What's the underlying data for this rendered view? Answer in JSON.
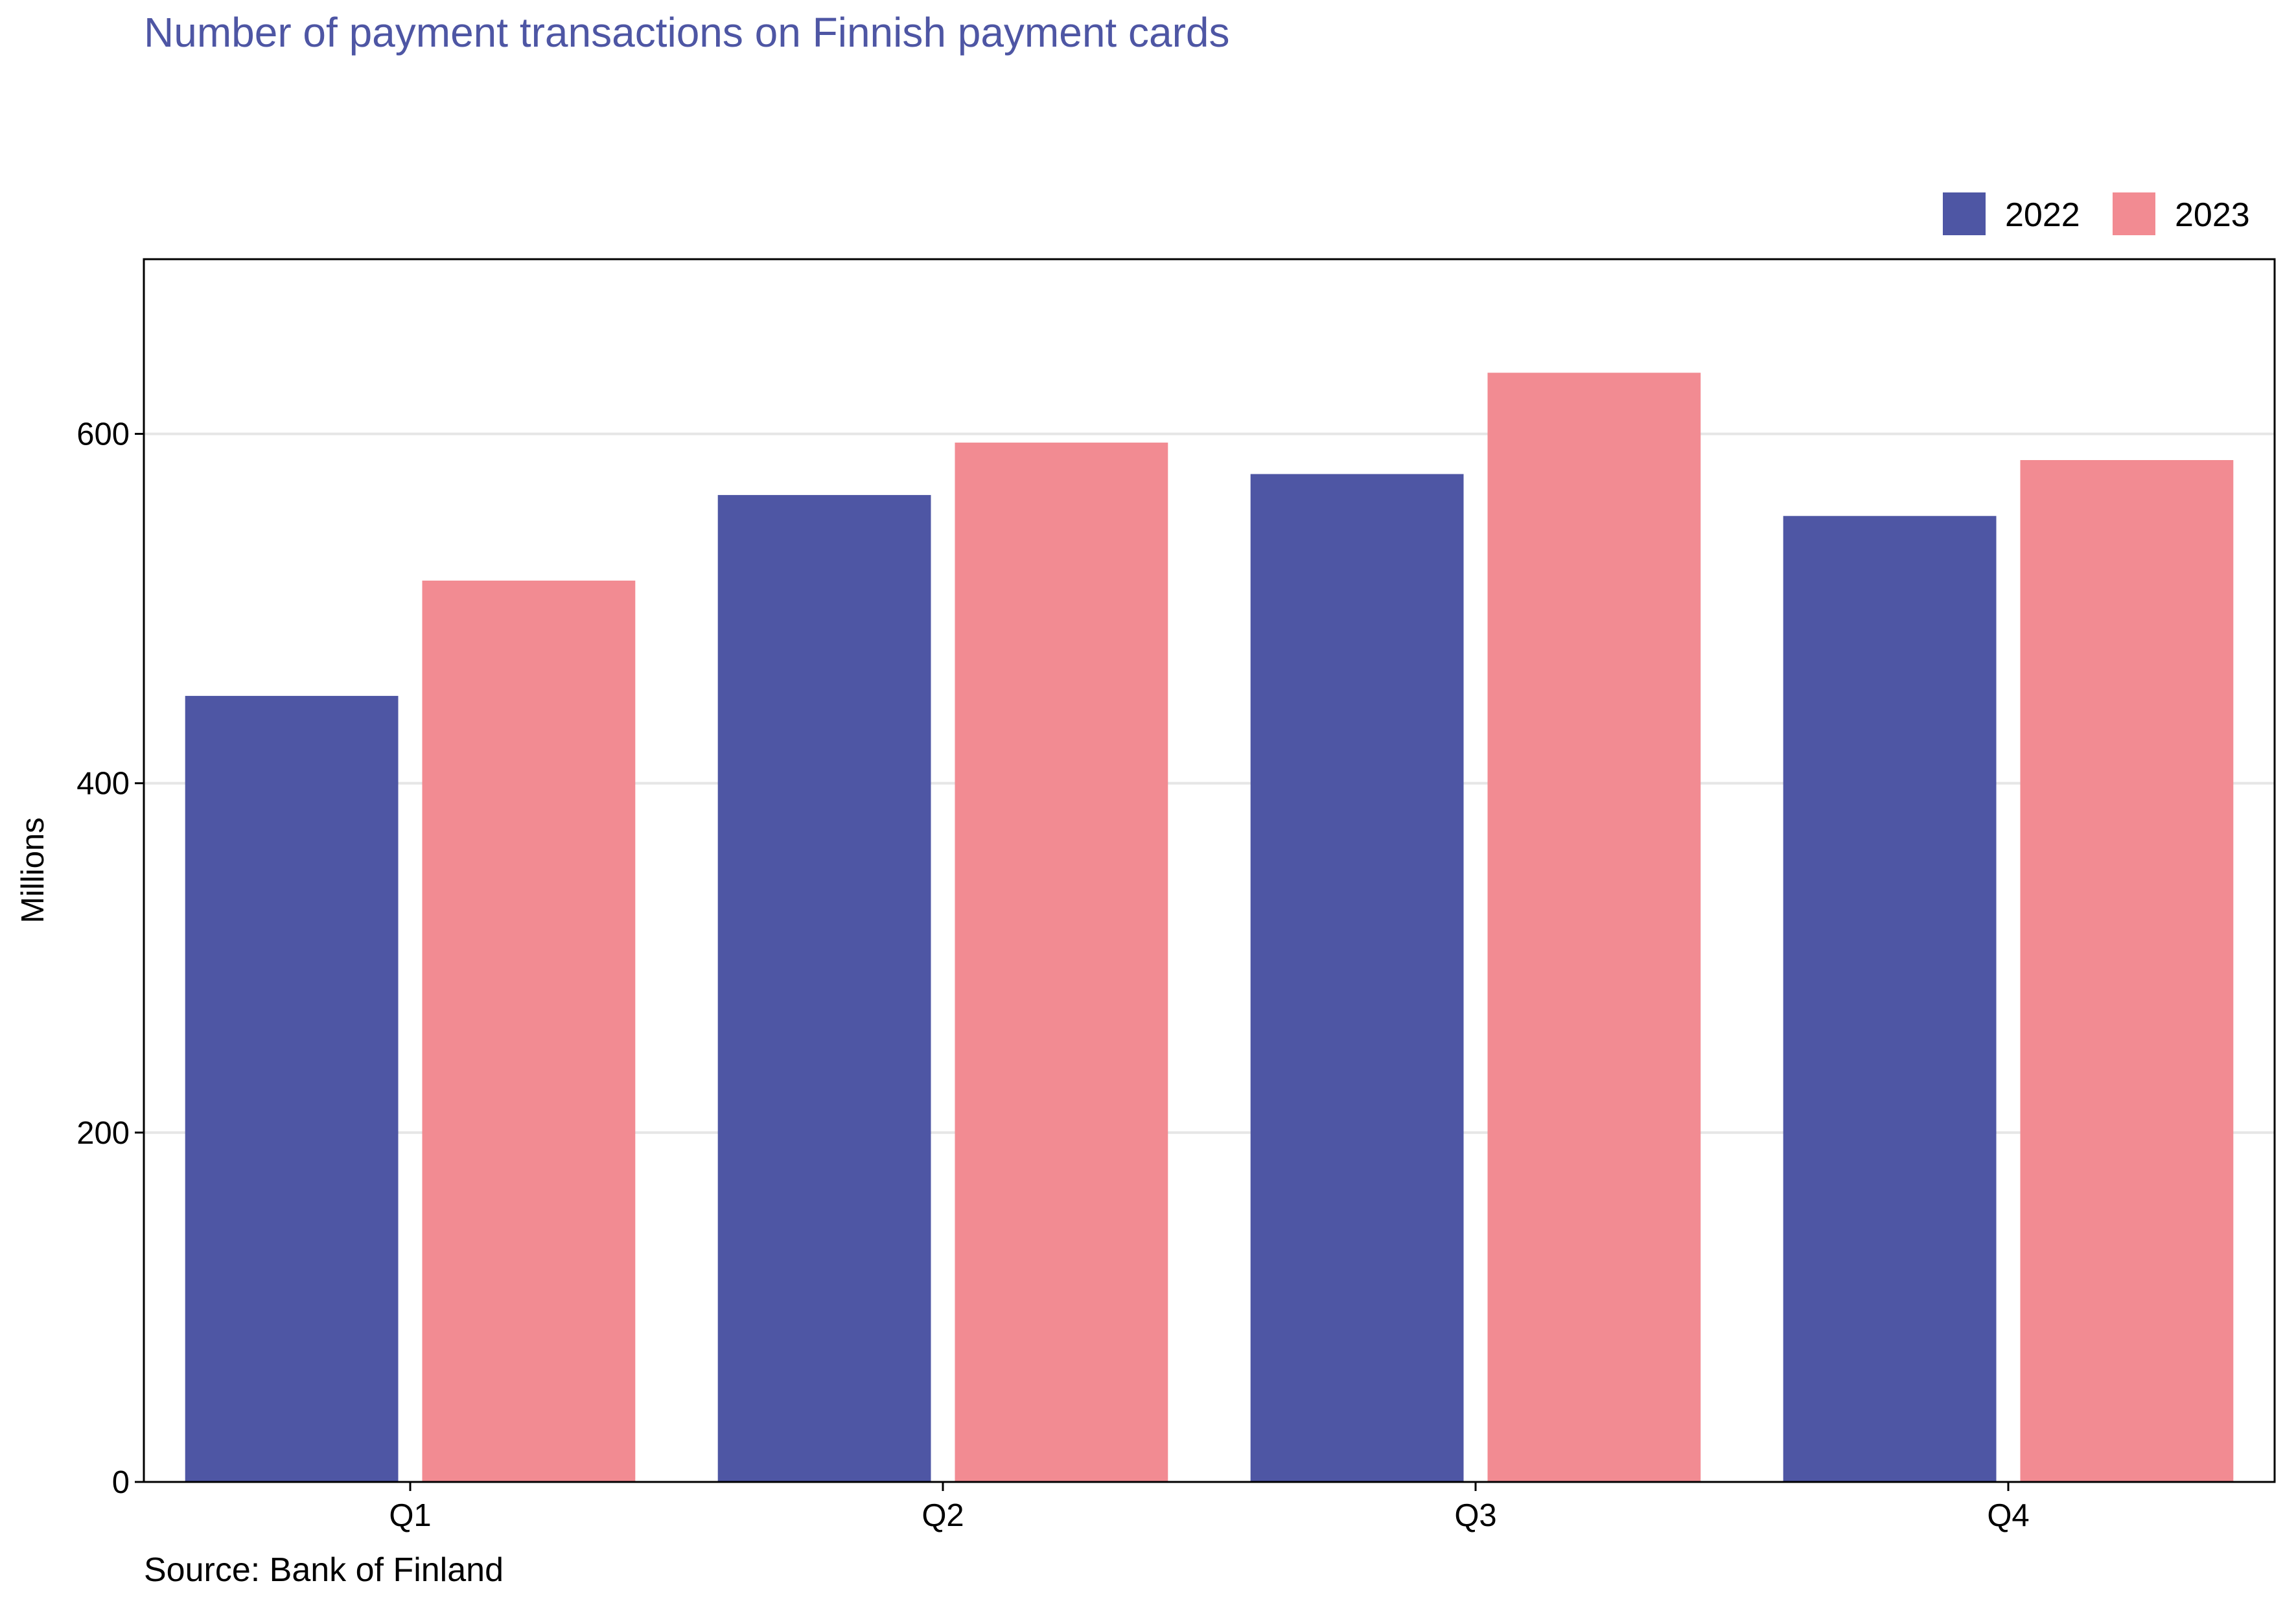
{
  "chart_data": {
    "type": "bar",
    "title": "Number of payment transactions on Finnish payment cards",
    "caption": "Source: Bank of Finland",
    "xlabel": "",
    "ylabel": "Millions",
    "categories": [
      "Q1",
      "Q2",
      "Q3",
      "Q4"
    ],
    "series": [
      {
        "name": "2022",
        "values": [
          450,
          565,
          577,
          553
        ]
      },
      {
        "name": "2023",
        "values": [
          516,
          595,
          635,
          585
        ]
      }
    ],
    "ylim": [
      0,
      700
    ],
    "yticks": [
      0,
      200,
      400,
      600
    ],
    "grid": "horizontal",
    "legend_position": "top-right"
  },
  "colors": {
    "title": "#4e56a4",
    "series_2022": "#4e56a4",
    "series_2023": "#f28b92",
    "grid": "#e6e6e6",
    "axis": "#000000"
  }
}
